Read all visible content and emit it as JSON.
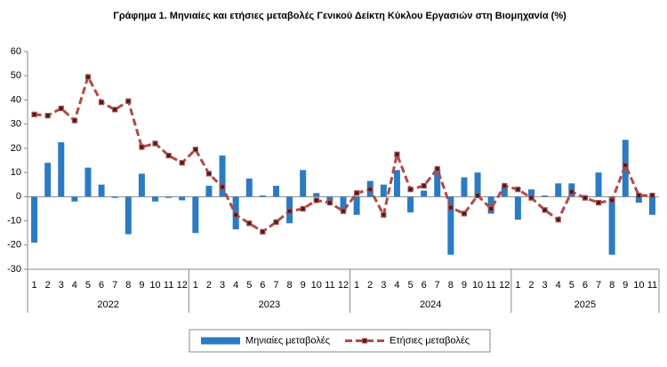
{
  "chart_data": {
    "type": "bar-line",
    "title": "Γράφημα 1.  Μηνιαίες και ετήσιες μεταβολές  Γενικού Δείκτη Κύκλου Εργασιών στη Βιομηχανία  (%)",
    "categories": [
      "1",
      "2",
      "3",
      "4",
      "5",
      "6",
      "7",
      "8",
      "9",
      "10",
      "11",
      "12",
      "1",
      "2",
      "3",
      "4",
      "5",
      "6",
      "7",
      "8",
      "9",
      "10",
      "11",
      "12",
      "1",
      "2",
      "3",
      "4",
      "5",
      "6",
      "7",
      "8",
      "9",
      "10",
      "11",
      "12",
      "1",
      "2",
      "3",
      "4",
      "5",
      "6",
      "7",
      "8",
      "9",
      "10",
      "11"
    ],
    "years": [
      "2022",
      "2023",
      "2024",
      "2025"
    ],
    "series": [
      {
        "name": "Μηνιαίες μεταβολές",
        "type": "bar",
        "color": "#2a7bc4",
        "values": [
          -19,
          14,
          22.5,
          -2,
          12,
          5,
          -0.5,
          -15.5,
          9.5,
          -2,
          -0.5,
          -1.5,
          -15,
          4.5,
          17,
          -13.5,
          7.5,
          0.5,
          4.5,
          -11,
          11,
          1.5,
          -2,
          -6,
          -7.5,
          6.5,
          5,
          11,
          -6.5,
          2.5,
          11,
          -24,
          8,
          10,
          -7,
          4,
          -9.5,
          3,
          0.5,
          5.5,
          5.5,
          -0.5,
          10,
          -24,
          23.5,
          -2.5,
          -7.5
        ]
      },
      {
        "name": "Ετήσιες μεταβολές",
        "type": "line",
        "color": "#b04a48",
        "values": [
          34,
          33.5,
          36.5,
          31.5,
          49.5,
          39,
          36,
          39.5,
          20.5,
          22,
          17,
          14,
          19.5,
          9.5,
          4,
          -7.5,
          -11,
          -14.5,
          -10.5,
          -6,
          -5,
          -1.5,
          -2.5,
          -6,
          1.5,
          3,
          -7.5,
          17.5,
          3,
          4.5,
          11.5,
          -4.5,
          -7,
          0.5,
          -5,
          4.5,
          3,
          -0.5,
          -5.5,
          -9.5,
          2,
          -0.5,
          -2.5,
          -1.5,
          13,
          0.5,
          0.5
        ]
      }
    ],
    "ylim": [
      -30,
      60
    ],
    "yticks": [
      -30,
      -20,
      -10,
      0,
      10,
      20,
      30,
      40,
      50,
      60
    ],
    "grid": false,
    "legend": "bottom"
  }
}
